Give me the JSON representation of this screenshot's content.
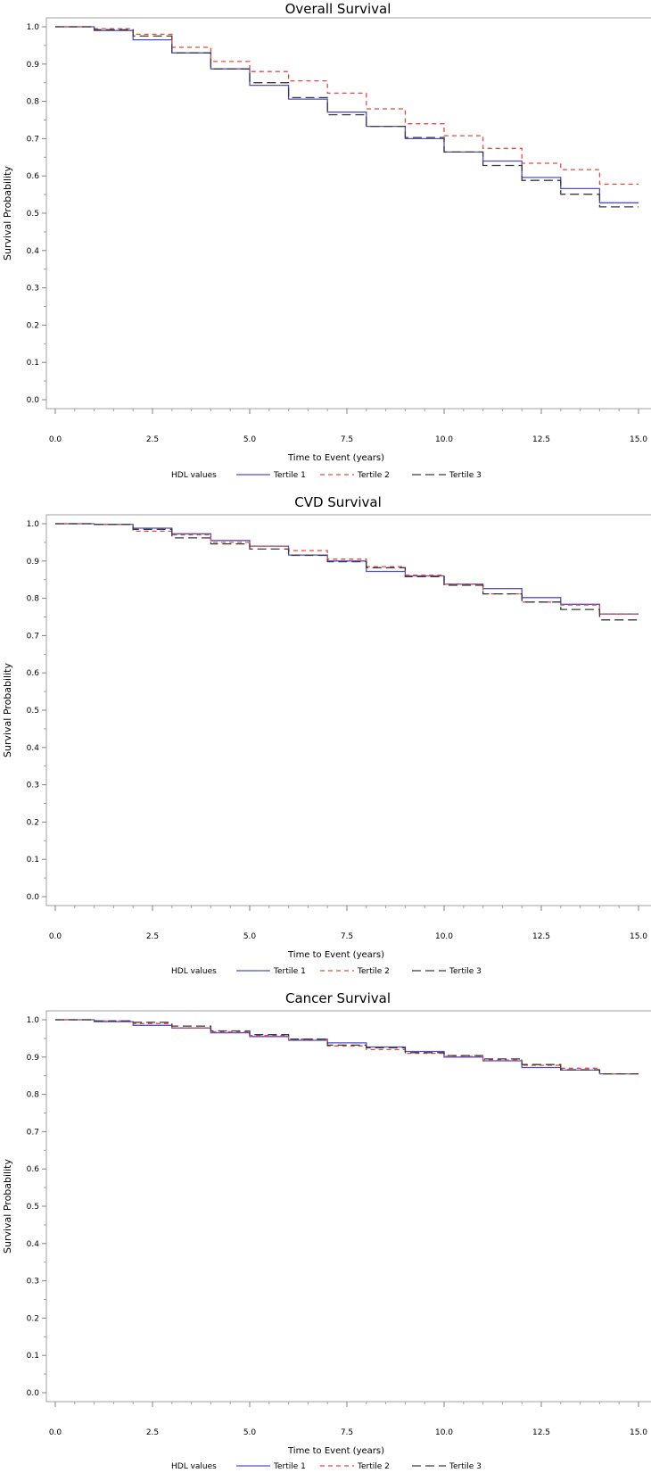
{
  "chart_data": [
    {
      "type": "line",
      "title": "Overall Survival",
      "xlabel": "Time to Event (years)",
      "ylabel": "Survival Probability",
      "xlim": [
        0,
        15
      ],
      "ylim": [
        0,
        1
      ],
      "x_ticks": [
        "0.0",
        "2.5",
        "5.0",
        "7.5",
        "10.0",
        "12.5",
        "15.0"
      ],
      "y_ticks": [
        "0.0",
        "0.1",
        "0.2",
        "0.3",
        "0.4",
        "0.5",
        "0.6",
        "0.7",
        "0.8",
        "0.9",
        "1.0"
      ],
      "legend_title": "HDL values",
      "step": true,
      "series": [
        {
          "name": "Tertile 1",
          "color": "#5050c8",
          "dash": "solid",
          "x": [
            0,
            1,
            2,
            3,
            4,
            5,
            6,
            7,
            8,
            9,
            10,
            11,
            12,
            13,
            14,
            15
          ],
          "values": [
            1.0,
            0.99,
            0.965,
            0.93,
            0.887,
            0.843,
            0.806,
            0.771,
            0.733,
            0.7,
            0.664,
            0.64,
            0.596,
            0.566,
            0.528,
            0.528
          ]
        },
        {
          "name": "Tertile 2",
          "color": "#e84a3c",
          "dash": "short",
          "x": [
            0,
            1,
            2,
            3,
            4,
            5,
            6,
            7,
            8,
            9,
            10,
            11,
            12,
            13,
            14,
            15
          ],
          "values": [
            1.0,
            0.995,
            0.98,
            0.945,
            0.907,
            0.88,
            0.855,
            0.822,
            0.78,
            0.74,
            0.708,
            0.674,
            0.634,
            0.617,
            0.578,
            0.578
          ]
        },
        {
          "name": "Tertile 3",
          "color": "#3a3a3a",
          "dash": "long",
          "x": [
            0,
            1,
            2,
            3,
            4,
            5,
            6,
            7,
            8,
            9,
            10,
            11,
            12,
            13,
            14,
            15
          ],
          "values": [
            1.0,
            0.992,
            0.975,
            0.93,
            0.887,
            0.85,
            0.81,
            0.764,
            0.733,
            0.703,
            0.664,
            0.628,
            0.588,
            0.551,
            0.517,
            0.517
          ]
        }
      ]
    },
    {
      "type": "line",
      "title": "CVD Survival",
      "xlabel": "Time to Event (years)",
      "ylabel": "Survival Probability",
      "xlim": [
        0,
        15
      ],
      "ylim": [
        0,
        1
      ],
      "x_ticks": [
        "0.0",
        "2.5",
        "5.0",
        "7.5",
        "10.0",
        "12.5",
        "15.0"
      ],
      "y_ticks": [
        "0.0",
        "0.1",
        "0.2",
        "0.3",
        "0.4",
        "0.5",
        "0.6",
        "0.7",
        "0.8",
        "0.9",
        "1.0"
      ],
      "legend_title": "HDL values",
      "step": true,
      "series": [
        {
          "name": "Tertile 1",
          "color": "#5050c8",
          "dash": "solid",
          "x": [
            0,
            1,
            2,
            3,
            4,
            5,
            6,
            7,
            8,
            9,
            10,
            11,
            12,
            13,
            14,
            15
          ],
          "values": [
            1.0,
            0.998,
            0.988,
            0.973,
            0.955,
            0.94,
            0.916,
            0.9,
            0.872,
            0.86,
            0.838,
            0.826,
            0.802,
            0.784,
            0.758,
            0.758
          ]
        },
        {
          "name": "Tertile 2",
          "color": "#e84a3c",
          "dash": "short",
          "x": [
            0,
            1,
            2,
            3,
            4,
            5,
            6,
            7,
            8,
            9,
            10,
            11,
            12,
            13,
            14,
            15
          ],
          "values": [
            1.0,
            0.998,
            0.98,
            0.97,
            0.95,
            0.94,
            0.928,
            0.905,
            0.885,
            0.862,
            0.838,
            0.812,
            0.79,
            0.782,
            0.758,
            0.758
          ]
        },
        {
          "name": "Tertile 3",
          "color": "#3a3a3a",
          "dash": "long",
          "x": [
            0,
            1,
            2,
            3,
            4,
            5,
            6,
            7,
            8,
            9,
            10,
            11,
            12,
            13,
            14,
            15
          ],
          "values": [
            1.0,
            0.998,
            0.985,
            0.962,
            0.946,
            0.932,
            0.915,
            0.898,
            0.882,
            0.858,
            0.835,
            0.812,
            0.79,
            0.77,
            0.742,
            0.742
          ]
        }
      ]
    },
    {
      "type": "line",
      "title": "Cancer Survival",
      "xlabel": "Time to Event (years)",
      "ylabel": "Survival Probability",
      "xlim": [
        0,
        15
      ],
      "ylim": [
        0,
        1
      ],
      "x_ticks": [
        "0.0",
        "2.5",
        "5.0",
        "7.5",
        "10.0",
        "12.5",
        "15.0"
      ],
      "y_ticks": [
        "0.0",
        "0.1",
        "0.2",
        "0.3",
        "0.4",
        "0.5",
        "0.6",
        "0.7",
        "0.8",
        "0.9",
        "1.0"
      ],
      "legend_title": "HDL values",
      "step": true,
      "series": [
        {
          "name": "Tertile 1",
          "color": "#5050c8",
          "dash": "solid",
          "x": [
            0,
            1,
            2,
            3,
            4,
            5,
            6,
            7,
            8,
            9,
            10,
            11,
            12,
            13,
            14,
            15
          ],
          "values": [
            1.0,
            0.995,
            0.985,
            0.978,
            0.965,
            0.955,
            0.945,
            0.938,
            0.927,
            0.915,
            0.9,
            0.89,
            0.872,
            0.865,
            0.855,
            0.855
          ]
        },
        {
          "name": "Tertile 2",
          "color": "#e84a3c",
          "dash": "short",
          "x": [
            0,
            1,
            2,
            3,
            4,
            5,
            6,
            7,
            8,
            9,
            10,
            11,
            12,
            13,
            14,
            15
          ],
          "values": [
            1.0,
            0.997,
            0.99,
            0.978,
            0.968,
            0.958,
            0.948,
            0.93,
            0.92,
            0.91,
            0.902,
            0.892,
            0.878,
            0.87,
            0.855,
            0.855
          ]
        },
        {
          "name": "Tertile 3",
          "color": "#3a3a3a",
          "dash": "long",
          "x": [
            0,
            1,
            2,
            3,
            4,
            5,
            6,
            7,
            8,
            9,
            10,
            11,
            12,
            13,
            14,
            15
          ],
          "values": [
            1.0,
            0.997,
            0.993,
            0.983,
            0.97,
            0.96,
            0.948,
            0.932,
            0.925,
            0.912,
            0.904,
            0.895,
            0.88,
            0.866,
            0.855,
            0.855
          ]
        }
      ]
    }
  ]
}
